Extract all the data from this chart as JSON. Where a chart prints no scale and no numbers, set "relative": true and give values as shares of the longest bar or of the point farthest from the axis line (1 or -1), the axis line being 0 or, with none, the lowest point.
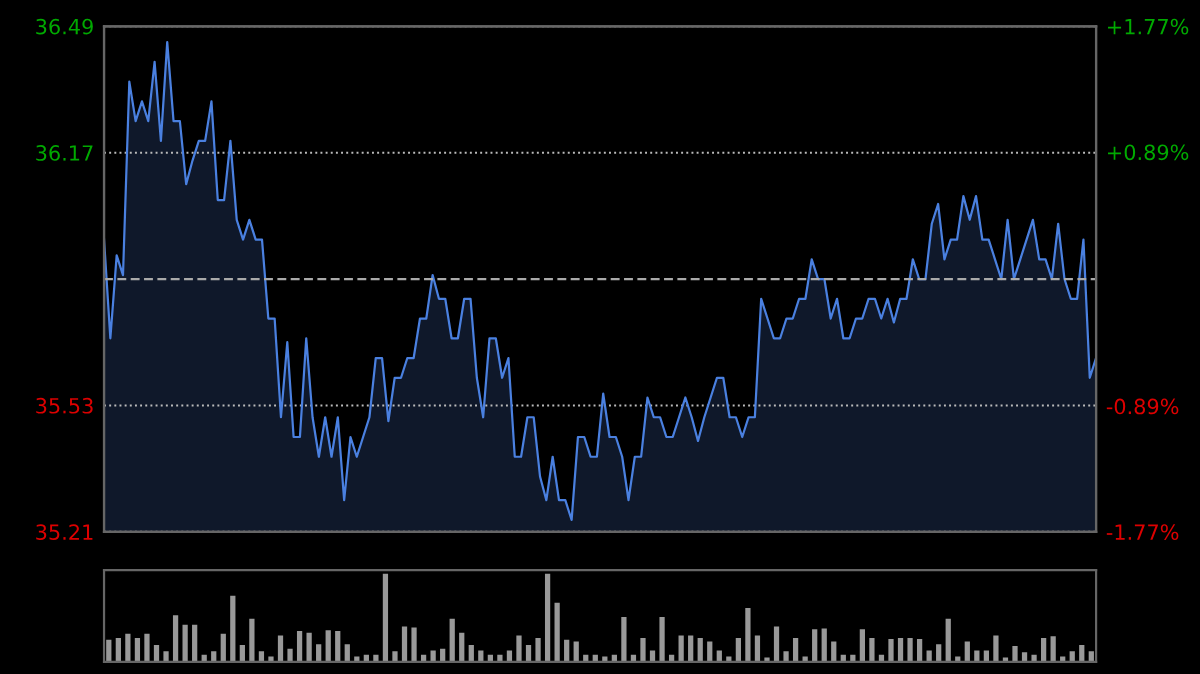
{
  "chart_data": [
    {
      "type": "area",
      "categories": [
        null,
        null,
        null,
        null,
        null,
        null,
        null,
        null,
        null,
        null,
        null,
        null,
        null,
        null,
        null,
        null,
        null,
        null,
        null,
        null,
        null,
        null,
        null,
        null,
        null,
        null,
        null,
        null,
        null,
        null,
        null,
        null,
        null,
        null,
        null,
        null,
        null,
        null,
        null,
        null,
        null,
        null,
        null,
        null,
        null,
        null,
        null,
        null,
        null,
        null,
        null,
        null,
        null,
        null,
        null,
        null,
        null,
        null,
        null,
        null,
        null,
        null,
        null,
        null,
        null,
        null,
        null,
        null,
        null,
        null,
        null,
        null,
        null,
        null,
        null,
        null,
        null,
        null,
        null,
        null,
        null,
        null,
        null,
        null,
        null,
        null,
        null,
        null,
        null,
        null,
        null,
        null,
        null,
        null,
        null,
        null,
        null,
        null,
        null,
        null,
        null,
        null,
        null,
        null,
        null,
        null,
        null,
        null,
        null,
        null,
        null,
        null,
        null,
        null,
        null,
        null,
        null,
        null,
        null,
        null,
        null,
        null,
        null,
        null,
        null,
        null,
        null,
        null,
        null,
        null,
        null,
        null,
        null,
        null,
        null,
        null,
        null,
        null,
        null,
        null,
        null,
        null,
        null,
        null,
        null,
        null,
        null,
        null,
        null,
        null,
        null,
        null,
        null,
        null,
        null,
        null,
        null,
        null
      ],
      "series": [
        {
          "color": "#4a80e0",
          "values": [
            35.95,
            35.7,
            35.91,
            35.86,
            36.35,
            36.25,
            36.3,
            36.25,
            36.4,
            36.2,
            36.45,
            36.25,
            36.25,
            36.09,
            36.15,
            36.2,
            36.2,
            36.3,
            36.05,
            36.05,
            36.2,
            36.0,
            35.95,
            36.0,
            35.95,
            35.95,
            35.75,
            35.75,
            35.5,
            35.69,
            35.45,
            35.45,
            35.7,
            35.5,
            35.4,
            35.5,
            35.4,
            35.5,
            35.29,
            35.45,
            35.4,
            35.45,
            35.5,
            35.65,
            35.65,
            35.49,
            35.6,
            35.6,
            35.65,
            35.65,
            35.75,
            35.75,
            35.86,
            35.8,
            35.8,
            35.7,
            35.7,
            35.8,
            35.8,
            35.6,
            35.5,
            35.7,
            35.7,
            35.6,
            35.65,
            35.4,
            35.4,
            35.5,
            35.5,
            35.35,
            35.29,
            35.4,
            35.29,
            35.29,
            35.24,
            35.45,
            35.45,
            35.4,
            35.4,
            35.56,
            35.45,
            35.45,
            35.4,
            35.29,
            35.4,
            35.4,
            35.55,
            35.5,
            35.5,
            35.45,
            35.45,
            35.5,
            35.55,
            35.5,
            35.44,
            35.5,
            35.55,
            35.6,
            35.6,
            35.5,
            35.5,
            35.45,
            35.5,
            35.5,
            35.8,
            35.75,
            35.7,
            35.7,
            35.75,
            35.75,
            35.8,
            35.8,
            35.9,
            35.85,
            35.85,
            35.75,
            35.8,
            35.7,
            35.7,
            35.75,
            35.75,
            35.8,
            35.8,
            35.75,
            35.8,
            35.74,
            35.8,
            35.8,
            35.9,
            35.85,
            35.85,
            35.99,
            36.04,
            35.9,
            35.95,
            35.95,
            36.06,
            36.0,
            36.06,
            35.95,
            35.95,
            35.9,
            35.85,
            36.0,
            35.85,
            35.9,
            35.95,
            36.0,
            35.9,
            35.9,
            35.85,
            35.99,
            35.85,
            35.8,
            35.8,
            35.95,
            35.6,
            35.65
          ]
        }
      ],
      "ylim": [
        35.21,
        36.49
      ],
      "yticks": [
        35.21,
        35.53,
        36.17,
        36.49
      ],
      "y2lim": [
        -1.77,
        1.77
      ],
      "y2ticks": [
        {
          "value": -1.77,
          "label": "-1.77%"
        },
        {
          "value": -0.89,
          "label": "-0.89%"
        },
        {
          "value": 0.89,
          "label": "+0.89%"
        },
        {
          "value": 1.77,
          "label": "+1.77%"
        }
      ],
      "ref_lines": [
        {
          "axis": "y",
          "value": 35.85,
          "color": "#aaaaaa",
          "line_style": "dashed"
        }
      ],
      "grid": "y",
      "tick_labels": "y"
    },
    {
      "type": "bar",
      "relative": true,
      "color": "#999999",
      "tick_labels": false,
      "categories": [
        null,
        null,
        null,
        null,
        null,
        null,
        null,
        null,
        null,
        null,
        null,
        null,
        null,
        null,
        null,
        null,
        null,
        null,
        null,
        null,
        null,
        null,
        null,
        null,
        null,
        null,
        null,
        null,
        null,
        null,
        null,
        null,
        null,
        null,
        null,
        null,
        null,
        null,
        null,
        null,
        null,
        null,
        null,
        null,
        null,
        null,
        null,
        null,
        null,
        null,
        null,
        null,
        null,
        null,
        null,
        null,
        null,
        null,
        null,
        null,
        null,
        null,
        null,
        null,
        null,
        null,
        null,
        null,
        null,
        null,
        null,
        null,
        null,
        null,
        null,
        null,
        null,
        null,
        null,
        null,
        null,
        null,
        null,
        null,
        null,
        null,
        null,
        null,
        null,
        null,
        null,
        null,
        null,
        null,
        null,
        null,
        null,
        null,
        null,
        null,
        null,
        null,
        null,
        null
      ],
      "values": [
        0.25,
        0.27,
        0.32,
        0.27,
        0.32,
        0.19,
        0.12,
        0.53,
        0.42,
        0.42,
        0.08,
        0.12,
        0.32,
        0.75,
        0.19,
        0.49,
        0.12,
        0.06,
        0.3,
        0.15,
        0.35,
        0.33,
        0.2,
        0.36,
        0.35,
        0.2,
        0.06,
        0.08,
        0.08,
        1.0,
        0.12,
        0.4,
        0.39,
        0.08,
        0.13,
        0.15,
        0.49,
        0.33,
        0.19,
        0.13,
        0.08,
        0.08,
        0.13,
        0.3,
        0.19,
        0.27,
        1.0,
        0.67,
        0.25,
        0.23,
        0.08,
        0.08,
        0.06,
        0.08,
        0.51,
        0.08,
        0.27,
        0.13,
        0.51,
        0.08,
        0.3,
        0.3,
        0.27,
        0.23,
        0.13,
        0.06,
        0.27,
        0.61,
        0.3,
        0.05,
        0.4,
        0.12,
        0.27,
        0.06,
        0.37,
        0.38,
        0.23,
        0.08,
        0.08,
        0.37,
        0.27,
        0.08,
        0.26,
        0.27,
        0.27,
        0.26,
        0.13,
        0.2,
        0.49,
        0.06,
        0.23,
        0.13,
        0.13,
        0.3,
        0.05,
        0.18,
        0.11,
        0.08,
        0.27,
        0.29,
        0.06,
        0.12,
        0.19,
        0.12
      ]
    }
  ]
}
